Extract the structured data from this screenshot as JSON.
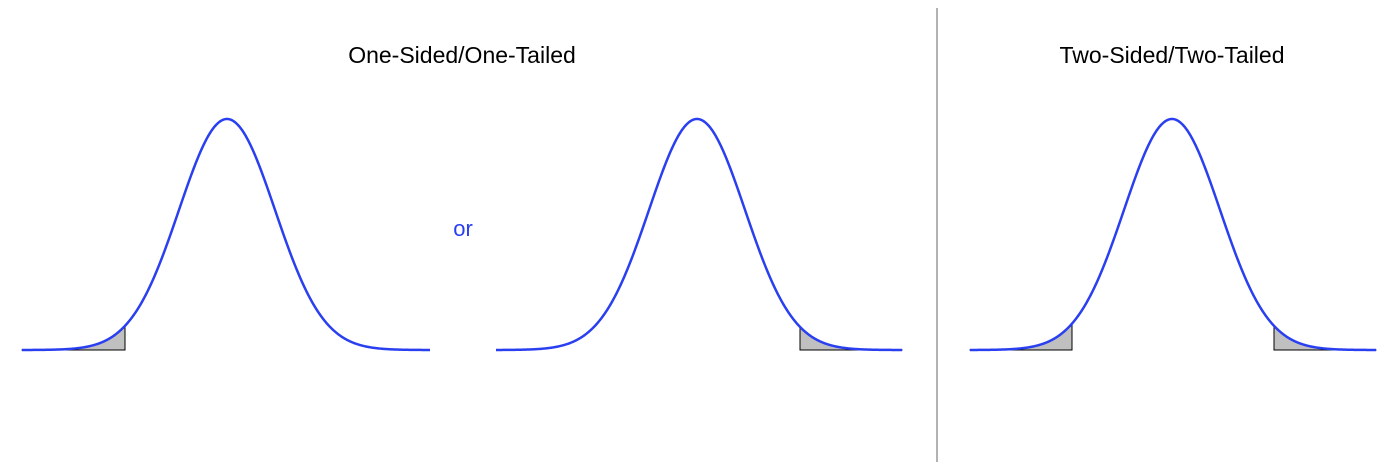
{
  "one_sided": {
    "title": "One-Sided/One-Tailed",
    "connector": "or"
  },
  "two_sided": {
    "title": "Two-Sided/Two-Tailed"
  },
  "colors": {
    "curve": "#2a3ff0",
    "shade_fill": "#c0c0c0",
    "shade_stroke": "#000000",
    "divider": "#999999",
    "connector_text": "#2a3ff0"
  }
}
